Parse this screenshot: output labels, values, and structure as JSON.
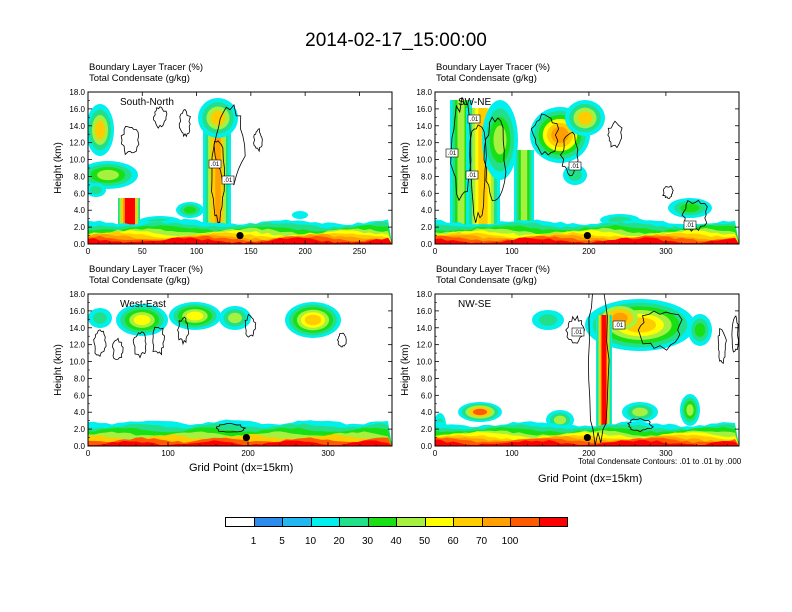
{
  "title": "2014-02-17_15:00:00",
  "colorbar": {
    "labels": [
      "1",
      "5",
      "10",
      "20",
      "30",
      "40",
      "50",
      "60",
      "70",
      "100"
    ],
    "colors": [
      "#ffffff",
      "#2b8cee",
      "#21b8f2",
      "#00f0ee",
      "#22e08a",
      "#18e014",
      "#a6f040",
      "#ffff00",
      "#ffcc00",
      "#ffa000",
      "#ff5a00",
      "#ff0000"
    ]
  },
  "panels": [
    {
      "id": "south-north",
      "label1": "Boundary Layer Tracer   (%)",
      "label2": "Total Condensate   (g/kg)",
      "section": "South-North",
      "ylabel": "Height (km)",
      "yticks": [
        "0.0",
        "2.0",
        "4.0",
        "6.0",
        "8.0",
        "10.0",
        "12.0",
        "14.0",
        "16.0",
        "18.0"
      ],
      "xticks": [
        "0",
        "50",
        "100",
        "150",
        "200",
        "250"
      ],
      "contour_tags": [
        ".01",
        ".01"
      ]
    },
    {
      "id": "sw-ne",
      "label1": "Boundary Layer Tracer   (%)",
      "label2": "Total Condensate   (g/kg)",
      "section": "SW-NE",
      "ylabel": "Height (km)",
      "yticks": [
        "0.0",
        "2.0",
        "4.0",
        "6.0",
        "8.0",
        "10.0",
        "12.0",
        "14.0",
        "16.0",
        "18.0"
      ],
      "xticks": [
        "0",
        "100",
        "200",
        "300"
      ],
      "contour_tags": [
        ".01",
        ".01",
        ".01",
        ".01",
        ".01"
      ]
    },
    {
      "id": "west-east",
      "label1": "Boundary Layer Tracer   (%)",
      "label2": "Total Condensate   (g/kg)",
      "section": "West-East",
      "ylabel": "Height (km)",
      "yticks": [
        "0.0",
        "2.0",
        "4.0",
        "6.0",
        "8.0",
        "10.0",
        "12.0",
        "14.0",
        "16.0",
        "18.0"
      ],
      "xticks": [
        "0",
        "100",
        "200",
        "300"
      ],
      "xlabel": "Grid Point (dx=15km)",
      "contour_tags": []
    },
    {
      "id": "nw-se",
      "label1": "Boundary Layer Tracer   (%)",
      "label2": "Total Condensate   (g/kg)",
      "section": "NW-SE",
      "ylabel": "Height (km)",
      "yticks": [
        "0.0",
        "2.0",
        "4.0",
        "6.0",
        "8.0",
        "10.0",
        "12.0",
        "14.0",
        "16.0",
        "18.0"
      ],
      "xticks": [
        "0",
        "100",
        "200",
        "300"
      ],
      "xlabel": "Grid Point (dx=15km)",
      "footnote": "Total Condensate Contours: .01 to .01 by .000",
      "contour_tags": [
        ".01",
        ".01"
      ]
    }
  ],
  "chart_data": [
    {
      "type": "heatmap",
      "title": "South-North",
      "xlabel": "",
      "ylabel": "Height (km)",
      "xlim": [
        0,
        280
      ],
      "ylim": [
        0,
        18
      ],
      "value_label": "Boundary Layer Tracer (%)",
      "levels": [
        1,
        5,
        10,
        20,
        30,
        40,
        50,
        60,
        70,
        100
      ],
      "contour_field": "Total Condensate (g/kg)",
      "contour_level": 0.01,
      "marker_point": {
        "x": 140,
        "height_km": 1.0
      }
    },
    {
      "type": "heatmap",
      "title": "SW-NE",
      "xlabel": "",
      "ylabel": "Height (km)",
      "xlim": [
        0,
        395
      ],
      "ylim": [
        0,
        18
      ],
      "value_label": "Boundary Layer Tracer (%)",
      "levels": [
        1,
        5,
        10,
        20,
        30,
        40,
        50,
        60,
        70,
        100
      ],
      "contour_field": "Total Condensate (g/kg)",
      "contour_level": 0.01,
      "marker_point": {
        "x": 198,
        "height_km": 1.0
      }
    },
    {
      "type": "heatmap",
      "title": "West-East",
      "xlabel": "Grid Point (dx=15km)",
      "ylabel": "Height (km)",
      "xlim": [
        0,
        380
      ],
      "ylim": [
        0,
        18
      ],
      "value_label": "Boundary Layer Tracer (%)",
      "levels": [
        1,
        5,
        10,
        20,
        30,
        40,
        50,
        60,
        70,
        100
      ],
      "contour_field": "Total Condensate (g/kg)",
      "contour_level": 0.01,
      "marker_point": {
        "x": 198,
        "height_km": 1.0
      }
    },
    {
      "type": "heatmap",
      "title": "NW-SE",
      "xlabel": "Grid Point (dx=15km)",
      "ylabel": "Height (km)",
      "xlim": [
        0,
        395
      ],
      "ylim": [
        0,
        18
      ],
      "value_label": "Boundary Layer Tracer (%)",
      "levels": [
        1,
        5,
        10,
        20,
        30,
        40,
        50,
        60,
        70,
        100
      ],
      "contour_field": "Total Condensate (g/kg)",
      "contour_level": 0.01,
      "marker_point": {
        "x": 198,
        "height_km": 1.0
      }
    }
  ]
}
